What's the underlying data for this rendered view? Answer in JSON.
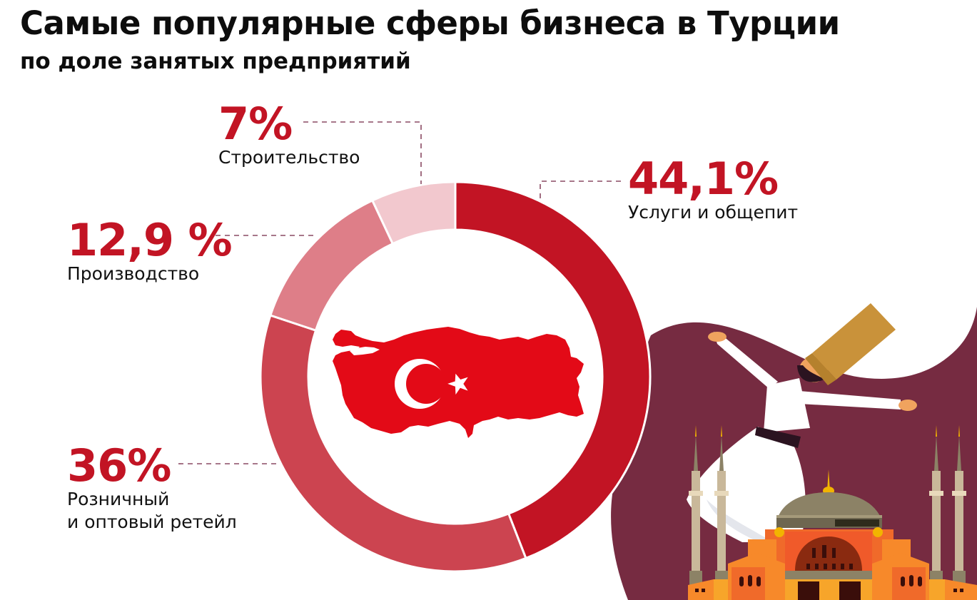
{
  "header": {
    "title": "Самые популярные сферы бизнеса в Турции",
    "subtitle": "по доле занятых предприятий"
  },
  "colors": {
    "accent": "#C21424",
    "illustration_background": "#762B41",
    "map_red": "#E30A17"
  },
  "labels": {
    "services": {
      "pct": "44,1%",
      "category": "Услуги и общепит"
    },
    "retail": {
      "pct": "36%",
      "category": "Розничный\nи оптовый ретейл"
    },
    "manufacturing": {
      "pct": "12,9 %",
      "category": "Производство"
    },
    "construction": {
      "pct": "7%",
      "category": "Строительство"
    }
  },
  "chart_data": {
    "type": "pie",
    "variant": "donut",
    "title": "Самые популярные сферы бизнеса в Турции",
    "subtitle": "по доле занятых предприятий",
    "categories": [
      "Услуги и общепит",
      "Розничный и оптовый ретейл",
      "Производство",
      "Строительство"
    ],
    "values": [
      44.1,
      36,
      12.9,
      7
    ],
    "value_labels": [
      "44,1%",
      "36%",
      "12,9 %",
      "7%"
    ],
    "unit": "%",
    "colors": [
      "#C21424",
      "#CC4450",
      "#DE7E88",
      "#F2C8CE"
    ],
    "start_angle": "12 o'clock",
    "direction": "clockwise",
    "center_image": "Turkey map with flag crescent and star",
    "legend": "callout labels with dashed leader lines"
  },
  "illustration": {
    "elements": [
      "whirling-dervish",
      "hagia-sophia-mosque",
      "minarets"
    ]
  }
}
